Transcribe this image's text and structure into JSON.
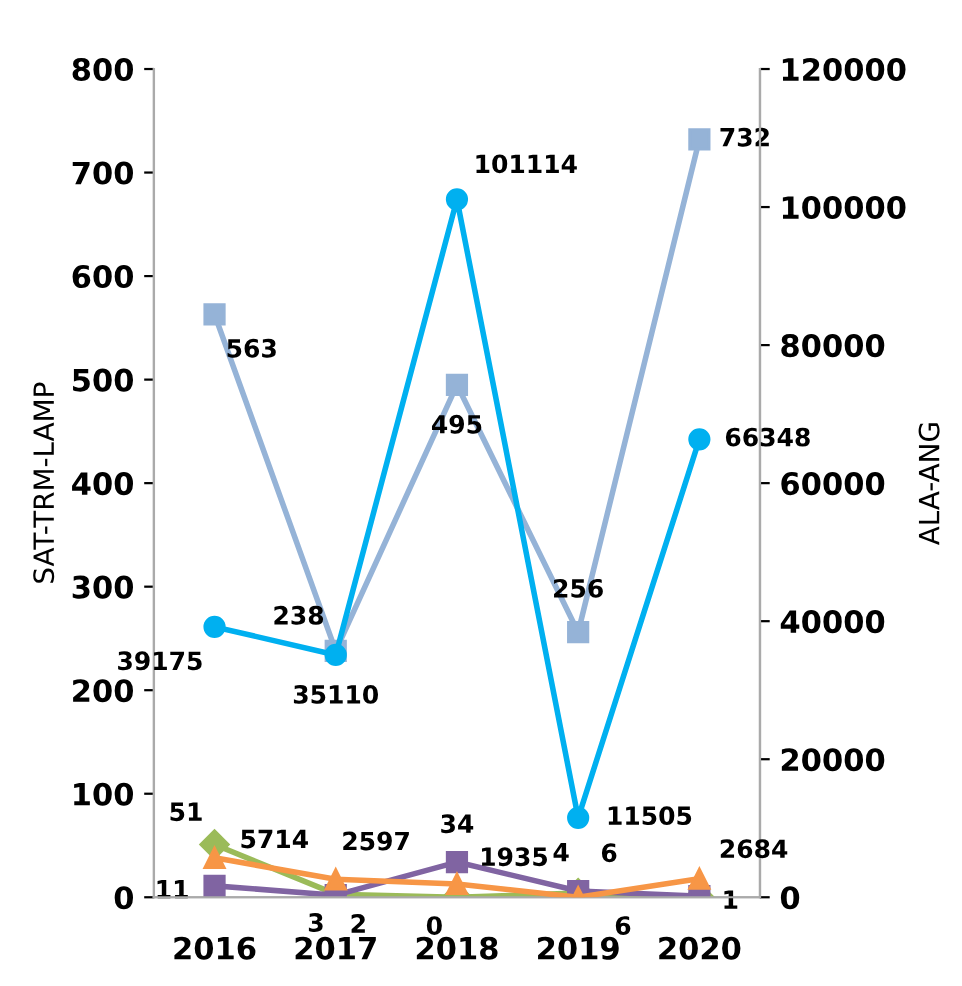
{
  "chart_data": {
    "type": "line",
    "categories": [
      "2016",
      "2017",
      "2018",
      "2019",
      "2020"
    ],
    "ylabel": "SAT-TRM-LAMP",
    "y2label": "ALA-ANG",
    "ylim": [
      0,
      800
    ],
    "yticks": [
      0,
      100,
      200,
      300,
      400,
      500,
      600,
      700,
      800
    ],
    "y2lim": [
      0,
      120000
    ],
    "y2ticks": [
      0,
      20000,
      40000,
      60000,
      80000,
      100000,
      120000
    ],
    "grid": false,
    "legend": false,
    "data_labels": true,
    "series": [
      {
        "color": "#95b3d7",
        "marker": "square",
        "values": [
          563,
          238,
          495,
          256,
          732
        ]
      },
      {
        "color": "#00b0f0",
        "marker": "circle",
        "axis": "y2",
        "values": [
          39175,
          35110,
          101114,
          11505,
          66348
        ]
      },
      {
        "color": "#9bbb59",
        "marker": "diamond",
        "values": [
          51,
          3,
          0,
          4,
          0
        ],
        "value_labels": [
          "51",
          "3",
          "0",
          "4",
          null
        ]
      },
      {
        "color": "#f79646",
        "marker": "triangle",
        "axis": "y2",
        "values": [
          5714,
          2597,
          1935,
          6,
          2684
        ]
      },
      {
        "color": "#8064a2",
        "marker": "square",
        "values": [
          11,
          2,
          34,
          6,
          1
        ]
      }
    ]
  }
}
